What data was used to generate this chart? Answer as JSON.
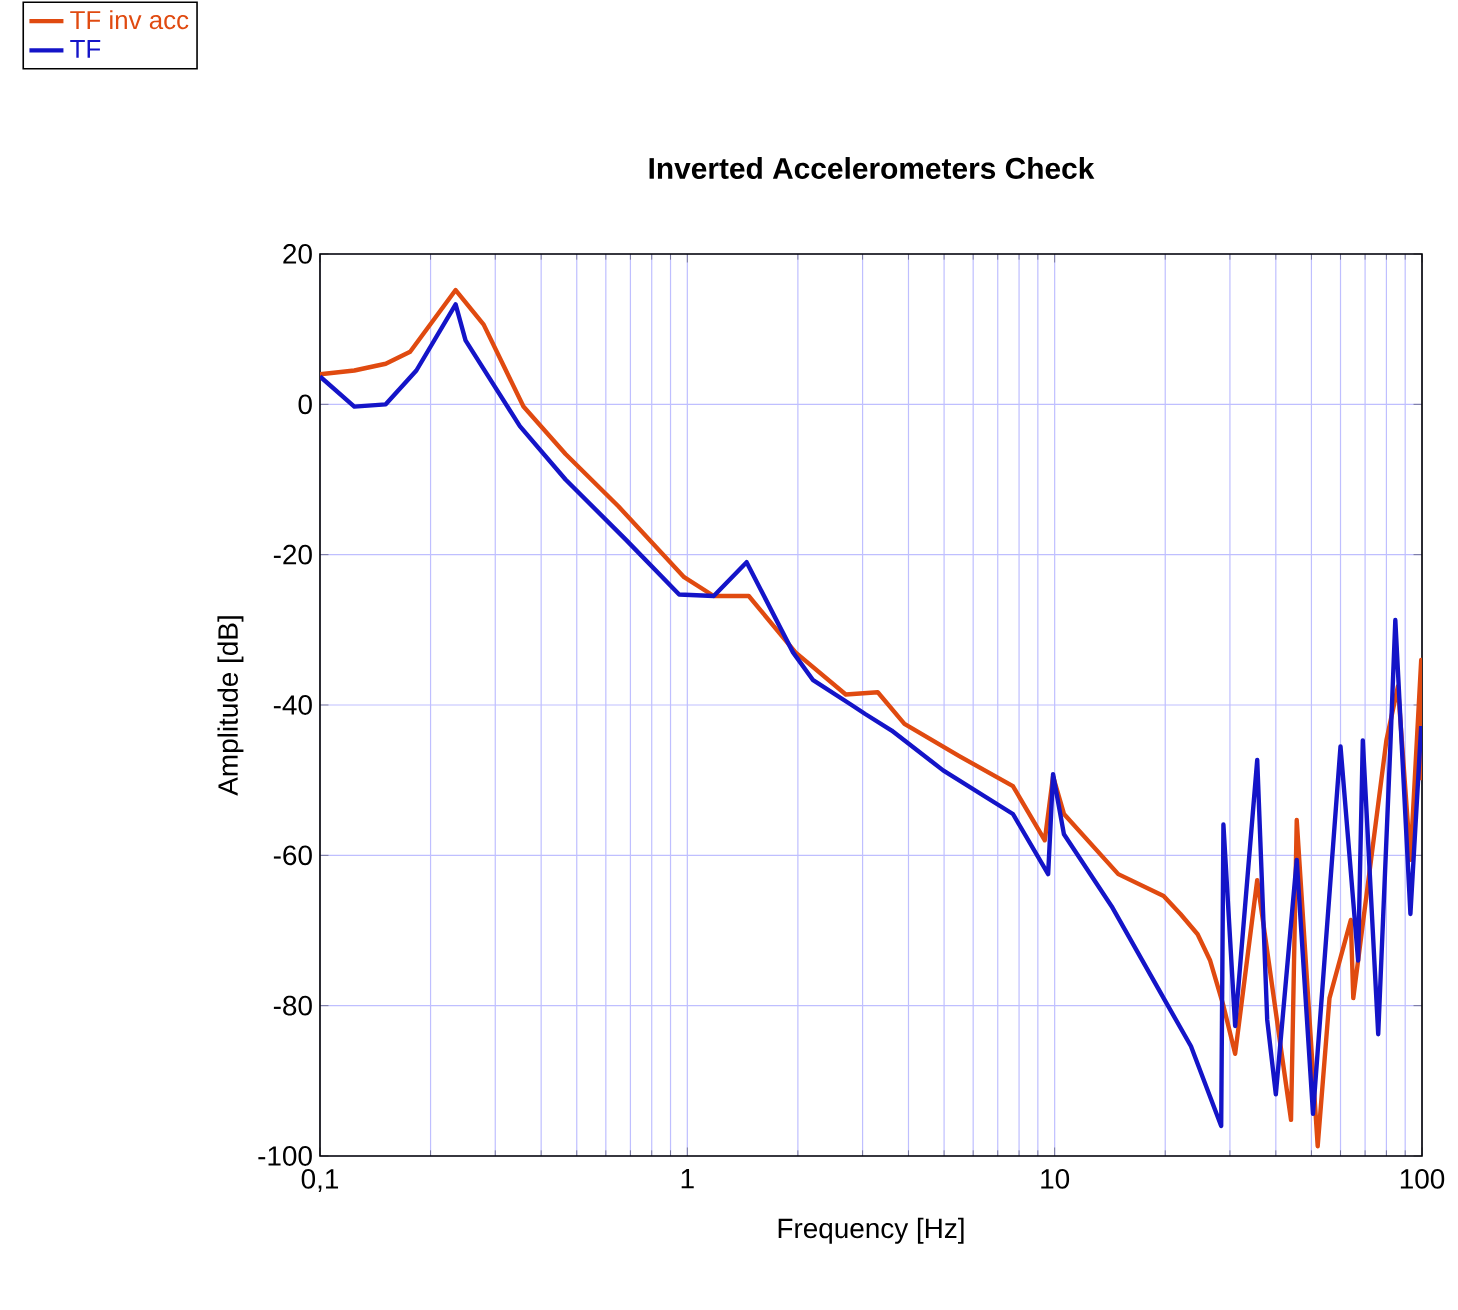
{
  "chart_data": {
    "type": "line",
    "title": "Inverted Accelerometers Check",
    "xlabel": "Frequency [Hz]",
    "ylabel": "Amplitude [dB]",
    "log": "x",
    "grid": true,
    "legend": "top left",
    "xlim": [
      0.1,
      100
    ],
    "ylim": [
      -100,
      20
    ],
    "xticks": [
      {
        "value": 0.1,
        "label": "0,1"
      },
      1,
      10,
      100
    ],
    "yticks": [
      -100,
      -80,
      -60,
      -40,
      -20,
      0,
      20
    ],
    "series": [
      {
        "name": "TF inv acc",
        "color": "#e04a10",
        "x": [
          0.1,
          0.124,
          0.151,
          0.176,
          0.234,
          0.279,
          0.358,
          0.466,
          0.65,
          0.98,
          1.18,
          1.47,
          1.97,
          2.7,
          3.3,
          3.9,
          5.5,
          7.7,
          9.4,
          9.9,
          10.6,
          14.9,
          19.8,
          22,
          24.5,
          26.5,
          28.8,
          31,
          35.6,
          44,
          45.6,
          52,
          56,
          64,
          65,
          80,
          86,
          93,
          99.5,
          100
        ],
        "values": [
          4,
          4.5,
          5.4,
          7,
          15.2,
          10.6,
          -0.3,
          -6.6,
          -13.6,
          -23,
          -25.5,
          -25.5,
          -33,
          -38.6,
          -38.3,
          -42.5,
          -46.8,
          -50.8,
          -58,
          -49.5,
          -54.5,
          -62.5,
          -65.4,
          -67.8,
          -70.5,
          -74,
          -80,
          -86.4,
          -63.3,
          -95.2,
          -55.3,
          -98.7,
          -79,
          -68.6,
          -79,
          -44.7,
          -37.5,
          -60.6,
          -34,
          -50
        ]
      },
      {
        "name": "TF",
        "color": "#1414c8",
        "x": [
          0.1,
          0.124,
          0.151,
          0.183,
          0.234,
          0.249,
          0.35,
          0.466,
          0.68,
          0.95,
          1.18,
          1.45,
          1.94,
          2.2,
          2.8,
          3.05,
          3.6,
          4.97,
          7.7,
          9.6,
          9.9,
          10.6,
          14.3,
          19.8,
          23.5,
          28.4,
          28.8,
          31,
          35.6,
          37.9,
          40,
          45.6,
          50.5,
          60,
          67,
          69,
          76,
          82,
          84.6,
          93,
          99.5
        ],
        "values": [
          3.7,
          -0.3,
          0,
          4.5,
          13.3,
          8.5,
          -2.9,
          -10,
          -18,
          -25.3,
          -25.5,
          -21,
          -33,
          -36.7,
          -40,
          -41.2,
          -43.4,
          -48.7,
          -54.5,
          -62.5,
          -49.2,
          -57.2,
          -66.8,
          -79,
          -85.4,
          -96,
          -55.9,
          -82.7,
          -47.3,
          -81.9,
          -91.8,
          -60.6,
          -94.4,
          -45.5,
          -74,
          -44.7,
          -83.8,
          -45.5,
          -28.7,
          -67.8,
          -42.8
        ]
      }
    ]
  }
}
